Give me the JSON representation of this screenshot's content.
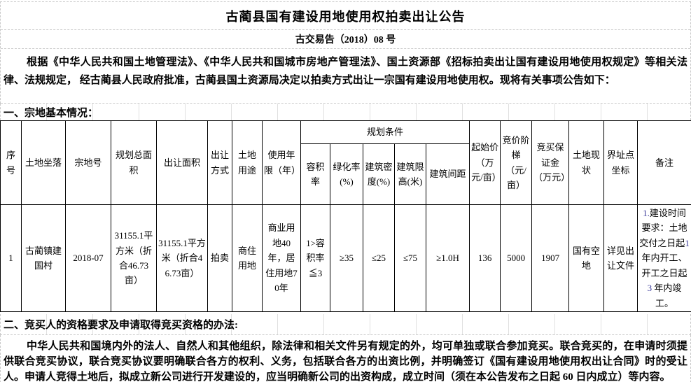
{
  "colors": {
    "accent_digit": "#3a3a9a",
    "table_border": "#000000",
    "grid_line": "#c9c9c9"
  },
  "header": {
    "title": "古蔺县国有建设用地使用权拍卖出让公告",
    "doc_no": "古交易告（2018）08 号"
  },
  "intro": "根据《中华人民共和国土地管理法》、《中华人民共和国城市房地产管理法》、国土资源部《招标拍卖出让国有建设用地使用权规定》等相关法律、法规规定，  经古蔺县人民政府批准，古蔺县国土资源局决定以拍卖方式出让一宗国有建设用地使用权。现将有关事项公告如下：",
  "section1": {
    "heading": "一、宗地基本情况："
  },
  "table": {
    "headers_main": [
      "序号",
      "土地坐落",
      "宗地号",
      "规划总面积",
      "出让面积",
      "出让方式",
      "土地用途",
      "使用年限（年）"
    ],
    "group": "规划条件",
    "headers_sub": [
      "容积率",
      "绿化率(%)",
      "建筑密度(%)",
      "建筑限高(米)",
      "建筑间距"
    ],
    "headers_tail": [
      "起始价（万元/亩）",
      "竞价阶梯（元/亩）",
      "竞买保证金（万元）",
      "土地现状",
      "界址点坐标",
      "备注"
    ],
    "row": {
      "serial": "1",
      "location": "古蔺镇建国村",
      "parcel_no": "2018-07",
      "planned_area": "31155.1平方米（折合46.73亩）",
      "transfer_area": "31155.1平方米（折合46.73亩）",
      "transfer_method": "拍卖",
      "land_use": "商住用地",
      "use_years": "商业用地40年，居住用地70年",
      "plot_ratio": "1>容积率≦3",
      "greening_rate": "≥35",
      "building_density": "≤25",
      "height_limit": "≤75",
      "building_spacing": "≥1.0H",
      "starting_price": "136",
      "bid_increment": "5000",
      "deposit": "1907",
      "land_status": "国有空地",
      "boundary_coords": "详见出让文件"
    },
    "remark_segments": [
      {
        "t": "1.",
        "accent": true
      },
      {
        "t": "建设时间要求：土地交付之日起"
      },
      {
        "t": "1",
        "accent": true
      },
      {
        "t": "年内开工、开工之日起 "
      },
      {
        "t": "3",
        "accent": true
      },
      {
        "t": " 年内竣工。"
      }
    ]
  },
  "section2": {
    "heading": "二、竞买人的资格要求及申请取得竞买资格的办法:",
    "body": "中华人民共和国境内外的法人、自然人和其他组织，除法律和相关文件另有规定的外，均可单独或联合参加竞买。联合竞买的，在申请时须提供联合竞买协议，联合竞买协议要明确联合各方的权利、义务，包括联合各方的出资比例，并明确签订《国有建设用地使用权出让合同》时的受让人。申请人竞得土地后，拟成立新公司进行开发建设的，应当明确新公司的出资构成，成立时间（须在本公告发布之日起 60 日内成立）等内容。"
  }
}
